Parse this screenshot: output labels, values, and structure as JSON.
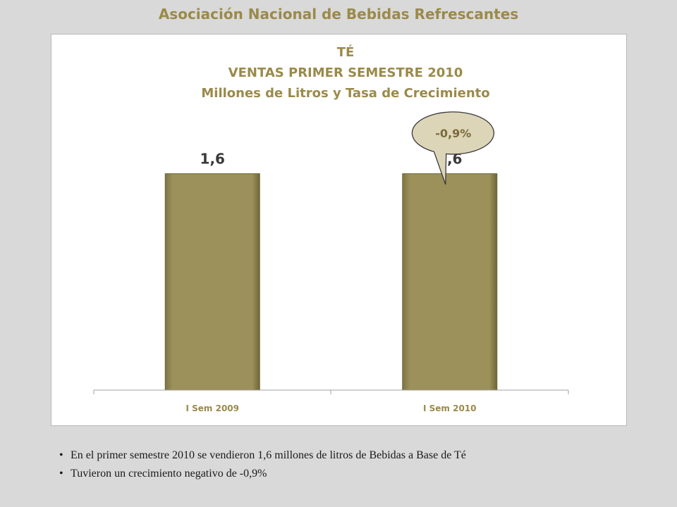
{
  "header": {
    "title": "Asociación Nacional de Bebidas  Refrescantes"
  },
  "chart_data": {
    "type": "bar",
    "title_lines": [
      "TÉ",
      "VENTAS PRIMER SEMESTRE 2010",
      "Millones de Litros y Tasa de Crecimiento"
    ],
    "categories": [
      "I Sem 2009",
      "I Sem 2010"
    ],
    "values": [
      1.6,
      1.6
    ],
    "data_labels": [
      "1,6",
      "1,6"
    ],
    "ylim": [
      0,
      1.9
    ],
    "grid": false,
    "legend": "none",
    "callout": {
      "text": "-0,9%",
      "category_index": 1
    },
    "colors": {
      "bar": "#9a8f58",
      "bar_edge": "#6e6638",
      "callout_fill": "#ddd5b8",
      "callout_stroke": "#3a3a3a"
    }
  },
  "notes": [
    "En el primer semestre  2010 se vendieron 1,6 millones de litros de Bebidas a Base de Té",
    "Tuvieron un crecimiento negativo de -0,9%"
  ]
}
